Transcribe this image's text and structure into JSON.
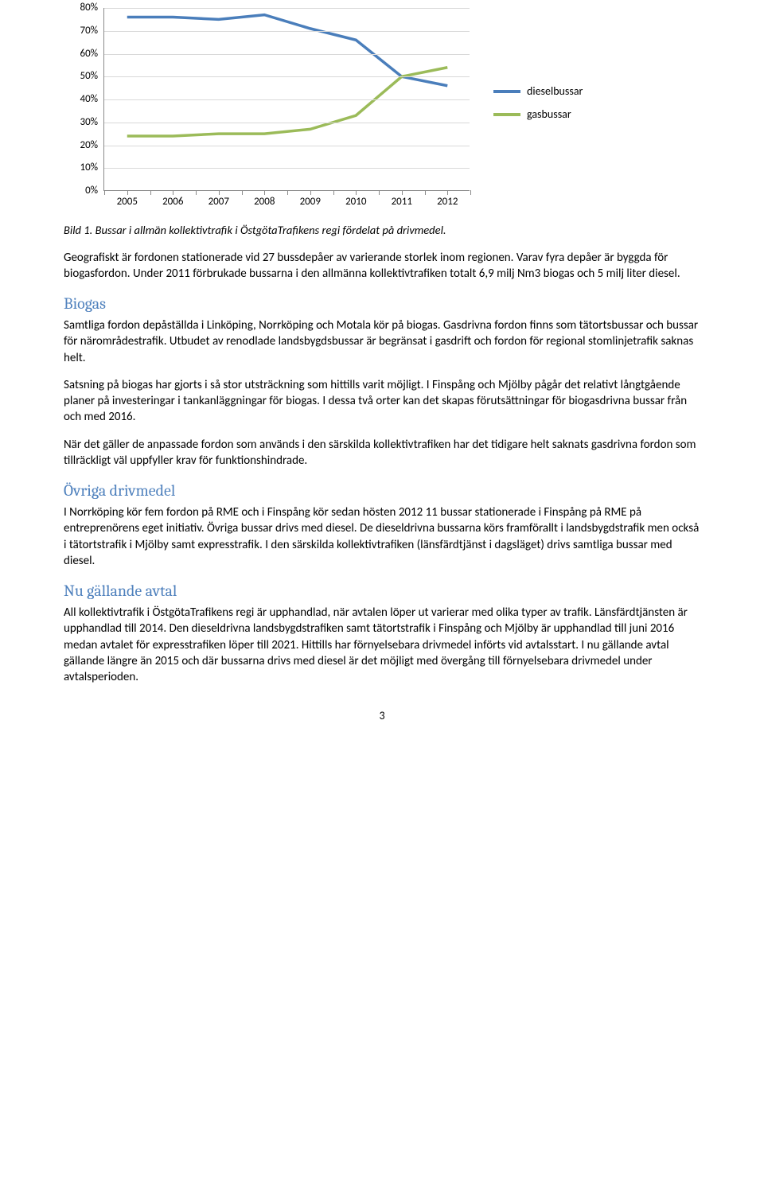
{
  "chart": {
    "type": "line",
    "categories": [
      "2005",
      "2006",
      "2007",
      "2008",
      "2009",
      "2010",
      "2011",
      "2012"
    ],
    "y_ticks": [
      0,
      10,
      20,
      30,
      40,
      50,
      60,
      70,
      80
    ],
    "y_labels": [
      "0%",
      "10%",
      "20%",
      "30%",
      "40%",
      "50%",
      "60%",
      "70%",
      "80%"
    ],
    "ymax": 80,
    "series": [
      {
        "name": "dieselbussar",
        "color": "#4a7ebb",
        "values": [
          76,
          76,
          75,
          77,
          71,
          66,
          50,
          46
        ]
      },
      {
        "name": "gasbussar",
        "color": "#9bbb59",
        "values": [
          24,
          24,
          25,
          25,
          27,
          33,
          50,
          54
        ]
      }
    ],
    "legend_labels": [
      "dieselbussar",
      "gasbussar"
    ],
    "plot_bg": "#ffffff",
    "grid_color": "#d9d9d9"
  },
  "caption": "Bild 1. Bussar i allmän kollektivtrafik i ÖstgötaTrafikens regi fördelat på drivmedel.",
  "intro_para": "Geografiskt är fordonen stationerade vid 27 bussdepåer av varierande storlek inom regionen. Varav fyra depåer är byggda för biogasfordon. Under 2011 förbrukade bussarna i den allmänna kollektivtrafiken totalt 6,9 milj Nm3 biogas och 5 milj liter diesel.",
  "sections": {
    "biogas": {
      "heading": "Biogas",
      "paras": [
        "Samtliga fordon depåställda i Linköping, Norrköping och Motala kör på biogas. Gasdrivna fordon finns som tätortsbussar och bussar för närområdestrafik. Utbudet av renodlade landsbygdsbussar är begränsat i gasdrift och fordon för regional stomlinjetrafik saknas helt.",
        "Satsning på biogas har gjorts i så stor utsträckning som hittills varit möjligt. I Finspång och Mjölby pågår det relativt långtgående planer på investeringar i tankanläggningar för biogas. I dessa två orter kan det skapas förutsättningar för biogasdrivna bussar från och med 2016.",
        "När det gäller de anpassade fordon som används i den särskilda kollektivtrafiken har det tidigare helt saknats gasdrivna fordon som tillräckligt väl uppfyller krav för funktionshindrade."
      ]
    },
    "ovriga": {
      "heading": "Övriga drivmedel",
      "paras": [
        "I Norrköping kör fem fordon på RME och i Finspång kör sedan hösten 2012 11 bussar stationerade i Finspång på RME på entreprenörens eget initiativ. Övriga bussar drivs med diesel. De dieseldrivna bussarna körs framförallt i landsbygdstrafik men också i  tätortstrafik i Mjölby samt expresstrafik. I den särskilda kollektivtrafiken (länsfärdtjänst i dagsläget) drivs samtliga bussar med diesel."
      ]
    },
    "avtal": {
      "heading": "Nu gällande avtal",
      "paras": [
        "All kollektivtrafik i ÖstgötaTrafikens regi är upphandlad, när avtalen löper ut varierar med olika typer av trafik. Länsfärdtjänsten är upphandlad till 2014. Den dieseldrivna landsbygdstrafiken samt tätortstrafik i Finspång och Mjölby är upphandlad till juni 2016 medan avtalet för expresstrafiken löper till 2021.  Hittills har förnyelsebara drivmedel införts vid avtalsstart. I nu gällande avtal gällande längre än 2015 och där bussarna drivs med diesel är det möjligt med övergång till förnyelsebara drivmedel under avtalsperioden."
      ]
    }
  },
  "page_number": "3"
}
